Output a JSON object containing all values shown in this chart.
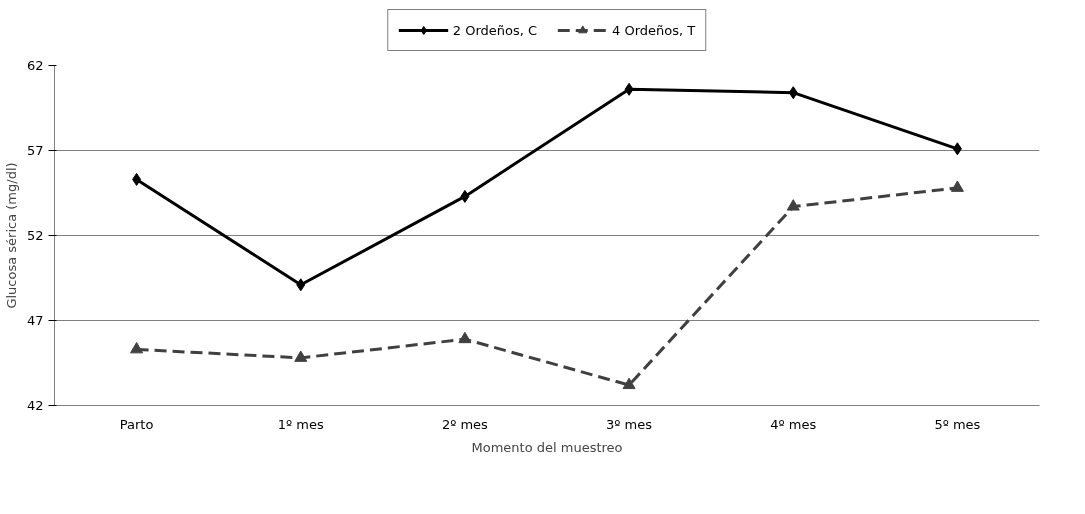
{
  "chart_data": {
    "type": "line",
    "xlabel": "Momento del muestreo",
    "ylabel": "Glucosa sérica (mg/dl)",
    "categories": [
      "Parto",
      "1º mes",
      "2º mes",
      "3º mes",
      "4º mes",
      "5º mes"
    ],
    "series": [
      {
        "name": "2 Ordeños, C",
        "color": "#000000",
        "marker": "diamond",
        "line_style": "solid",
        "values": [
          55.3,
          49.1,
          54.3,
          60.6,
          60.4,
          57.1
        ]
      },
      {
        "name": "4 Ordeños, T",
        "color": "#404040",
        "marker": "triangle",
        "line_style": "dashed",
        "values": [
          45.3,
          44.8,
          45.9,
          43.2,
          53.7,
          54.8
        ]
      }
    ],
    "ylim": [
      42,
      62
    ],
    "yticks": [
      42,
      47,
      52,
      57,
      62
    ],
    "grid": "y",
    "legend": "top"
  }
}
